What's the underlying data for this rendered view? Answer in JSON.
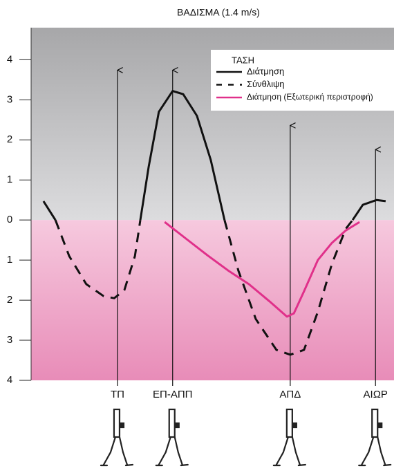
{
  "chart_data": {
    "type": "line",
    "title": "ΒΑΔΙΣΜΑ (1.4 m/s)",
    "xlim": [
      0,
      100
    ],
    "ylim": [
      -4,
      4.8
    ],
    "yticks": [
      {
        "value": 4,
        "label": "4"
      },
      3,
      2,
      1,
      0,
      {
        "value": -1,
        "label": "1"
      },
      {
        "value": -2,
        "label": "2"
      },
      {
        "value": -3,
        "label": "3"
      },
      {
        "value": -4,
        "label": "4"
      }
    ],
    "legend_title": "ΤΑΣΗ",
    "legend": "upper right",
    "series": [
      {
        "name": "Διάτμηση",
        "color": "#111111",
        "dash": false,
        "x": [
          3.4,
          6.7,
          10.5,
          15.2,
          20,
          22.9,
          25.7,
          28.6,
          30.1,
          32.4,
          35.2,
          39,
          41.9,
          45.7,
          49.5,
          53.3,
          57.1,
          61.9,
          67.6,
          71.4,
          75.2,
          79,
          82.9,
          86.7,
          88.6,
          91.4,
          95.2,
          97.7
        ],
        "values": [
          0.47,
          0,
          null,
          null,
          null,
          null,
          null,
          null,
          0,
          1.33,
          2.7,
          3.22,
          3.14,
          2.6,
          1.5,
          0,
          null,
          null,
          null,
          null,
          null,
          null,
          null,
          null,
          0,
          0.38,
          0.5,
          0.47
        ]
      },
      {
        "name": "Σύνθλιψη",
        "color": "#111111",
        "dash": true,
        "x": [
          3.4,
          6.7,
          10.5,
          15.2,
          20,
          22.9,
          25.7,
          28.6,
          30.1,
          32.4,
          35.2,
          39,
          41.9,
          45.7,
          49.5,
          53.3,
          57.1,
          61.9,
          67.6,
          71.4,
          75.2,
          79,
          82.9,
          86.7,
          88.6,
          91.4,
          95.2,
          97.7
        ],
        "values": [
          null,
          0,
          -0.9,
          -1.6,
          -1.9,
          -1.95,
          -1.75,
          -0.9,
          0,
          null,
          null,
          null,
          null,
          null,
          null,
          0,
          -1.26,
          -2.47,
          -3.24,
          -3.36,
          -3.24,
          -2.29,
          -1.09,
          -0.22,
          0,
          null,
          null,
          null
        ]
      },
      {
        "name": "Διάτμηση (Εξωτερική περιστροφή)",
        "color": "#e0308a",
        "dash": false,
        "x": [
          36.8,
          42.9,
          48.6,
          54.3,
          60,
          65.7,
          70.5,
          72.4,
          75.2,
          79,
          82.9,
          86.7,
          90.5
        ],
        "values": [
          -0.05,
          -0.48,
          -0.88,
          -1.26,
          -1.6,
          -2.03,
          -2.41,
          -2.33,
          -1.78,
          -1,
          -0.57,
          -0.26,
          -0.05
        ]
      }
    ],
    "events": [
      {
        "label": "ΤΠ",
        "x": 23.8,
        "top": 3.74
      },
      {
        "label": "ΕΠ-ΑΠΠ",
        "x": 39,
        "top": 3.74
      },
      {
        "label": "ΑΠΔ",
        "x": 71.4,
        "top": 2.36
      },
      {
        "label": "ΑΙΩΡ",
        "x": 94.9,
        "top": 1.76
      }
    ]
  }
}
